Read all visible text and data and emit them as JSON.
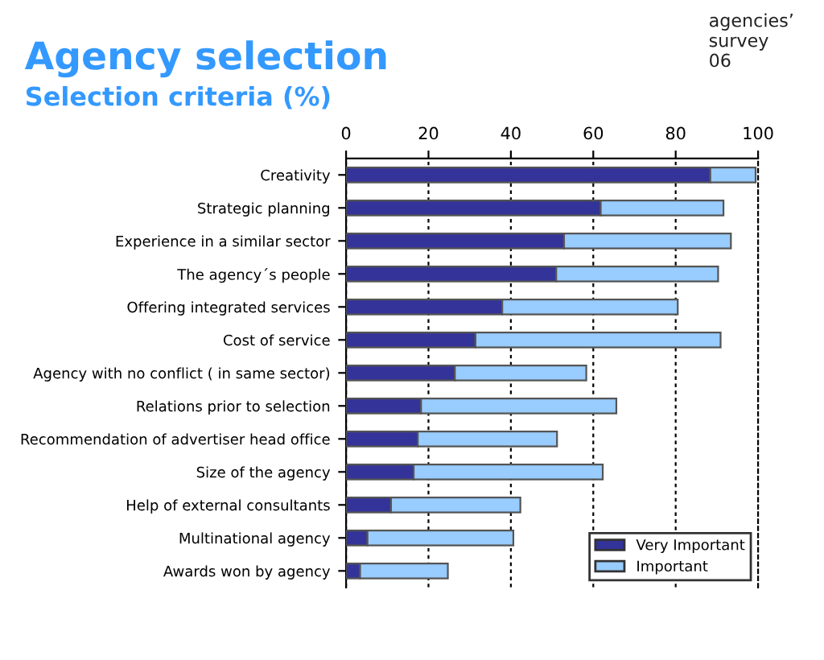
{
  "chart_data": {
    "type": "bar",
    "orientation": "horizontal",
    "stacked": true,
    "title": "Agency selection",
    "subtitle": "Selection criteria (%)",
    "annotations": [
      "agencies’\nsurvey\n06"
    ],
    "categories": [
      "Creativity",
      "Strategic planning",
      "Experience in a similar sector",
      "The agency´s people",
      "Offering integrated services",
      "Cost of service",
      "Agency with no conflict ( in same sector)",
      "Relations prior to selection",
      "Recommendation of advertiser head office",
      "Size of the agency",
      "Help of external consultants",
      "Multinational agency",
      "Awards won by agency"
    ],
    "series": [
      {
        "name": "Very Important",
        "color": "#333399",
        "values": [
          88.4,
          61.8,
          52.9,
          51,
          37.9,
          31.4,
          26.4,
          18.2,
          17.4,
          16.4,
          10.9,
          5.2,
          3.4
        ]
      },
      {
        "name": "Important",
        "color": "#99ccff",
        "values": [
          11,
          29.8,
          40.5,
          39.3,
          42.6,
          59.5,
          31.9,
          47.4,
          33.8,
          45.9,
          31.4,
          35.4,
          21.3
        ]
      }
    ],
    "xlim": [
      0,
      100
    ],
    "xticks": [
      0,
      20,
      40,
      60,
      80,
      100
    ],
    "grid": "x",
    "legend": "bottom right"
  }
}
